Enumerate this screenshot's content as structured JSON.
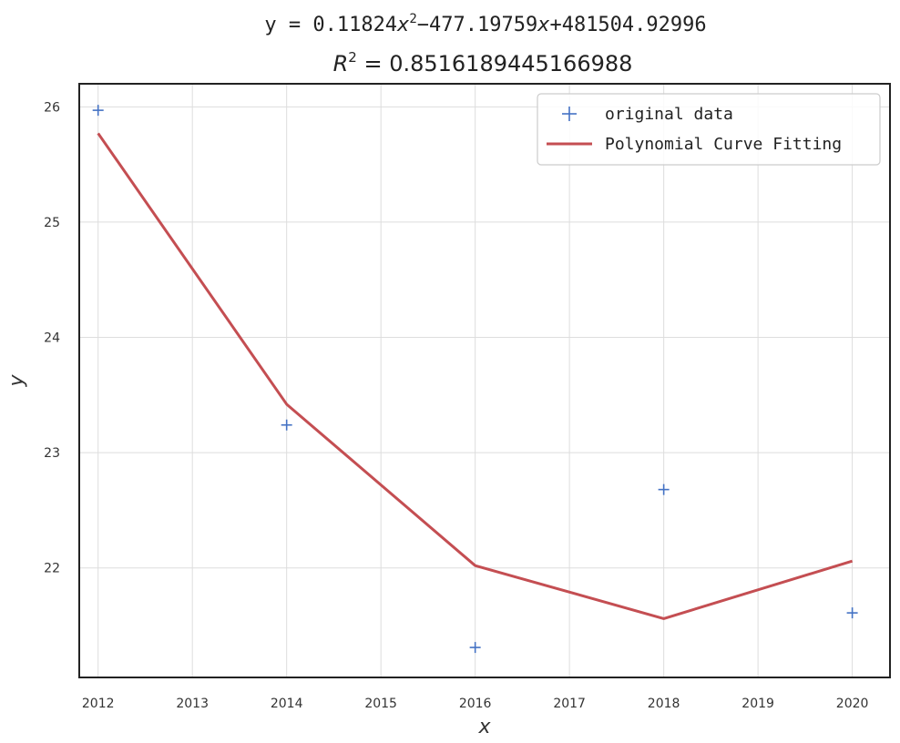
{
  "chart_data": {
    "type": "line",
    "title_fit": "y = 0.11824",
    "title_fit_x2": "x",
    "title_fit_exp": "2",
    "title_fit_rest1": "−477.19759",
    "title_fit_x": "x",
    "title_fit_rest2": "+481504.92996",
    "title_r2_label": "R",
    "title_r2_exp": "2",
    "title_r2_value": " = 0.8516189445166988",
    "xlabel": "x",
    "ylabel": "y",
    "xlim": [
      2011.8,
      2020.4
    ],
    "ylim": [
      21.05,
      26.2
    ],
    "x_ticks": [
      2012,
      2013,
      2014,
      2015,
      2016,
      2017,
      2018,
      2019,
      2020
    ],
    "x_tick_labels": [
      "2012",
      "2013",
      "2014",
      "2015",
      "2016",
      "2017",
      "2018",
      "2019",
      "2020"
    ],
    "y_ticks": [
      22,
      23,
      24,
      25,
      26
    ],
    "y_tick_labels": [
      "22",
      "23",
      "24",
      "25",
      "26"
    ],
    "grid": true,
    "legend_position": "top-right",
    "series": [
      {
        "name": "original data",
        "kind": "scatter",
        "marker": "+",
        "color": "#4472c4",
        "x": [
          2012,
          2014,
          2016,
          2018,
          2020
        ],
        "y": [
          25.97,
          23.24,
          21.31,
          22.68,
          21.61
        ]
      },
      {
        "name": "Polynomial Curve Fitting",
        "kind": "line",
        "color": "#c44e52",
        "x": [
          2012,
          2014,
          2016,
          2018,
          2020
        ],
        "y": [
          25.77,
          23.42,
          22.02,
          21.56,
          22.06
        ]
      }
    ]
  }
}
